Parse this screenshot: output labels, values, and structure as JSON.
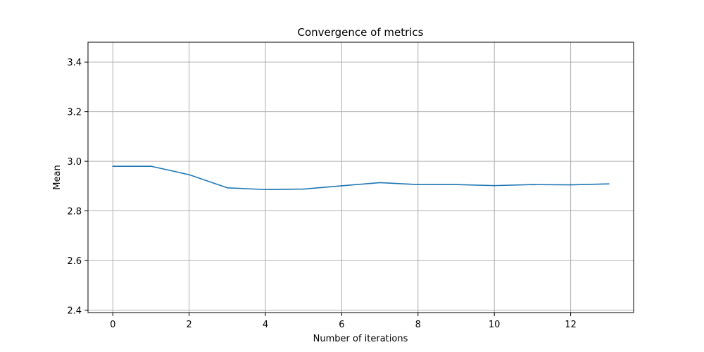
{
  "chart_data": {
    "type": "line",
    "title": "Convergence of metrics",
    "xlabel": "Number of iterations",
    "ylabel": "Mean",
    "xlim": [
      -0.65,
      13.65
    ],
    "ylim": [
      2.39,
      3.48
    ],
    "xticks": [
      0,
      2,
      4,
      6,
      8,
      10,
      12
    ],
    "yticks": [
      2.4,
      2.6,
      2.8,
      3.0,
      3.2,
      3.4
    ],
    "ytick_labels": [
      "2.4",
      "2.6",
      "2.8",
      "3.0",
      "3.2",
      "3.4"
    ],
    "grid": true,
    "series": [
      {
        "color": "#1f77b4",
        "x": [
          0,
          1,
          2,
          3,
          4,
          5,
          6,
          7,
          8,
          9,
          10,
          11,
          12,
          13
        ],
        "y": [
          2.98,
          2.98,
          2.946,
          2.893,
          2.886,
          2.888,
          2.901,
          2.914,
          2.906,
          2.906,
          2.902,
          2.906,
          2.905,
          2.909
        ]
      }
    ]
  }
}
